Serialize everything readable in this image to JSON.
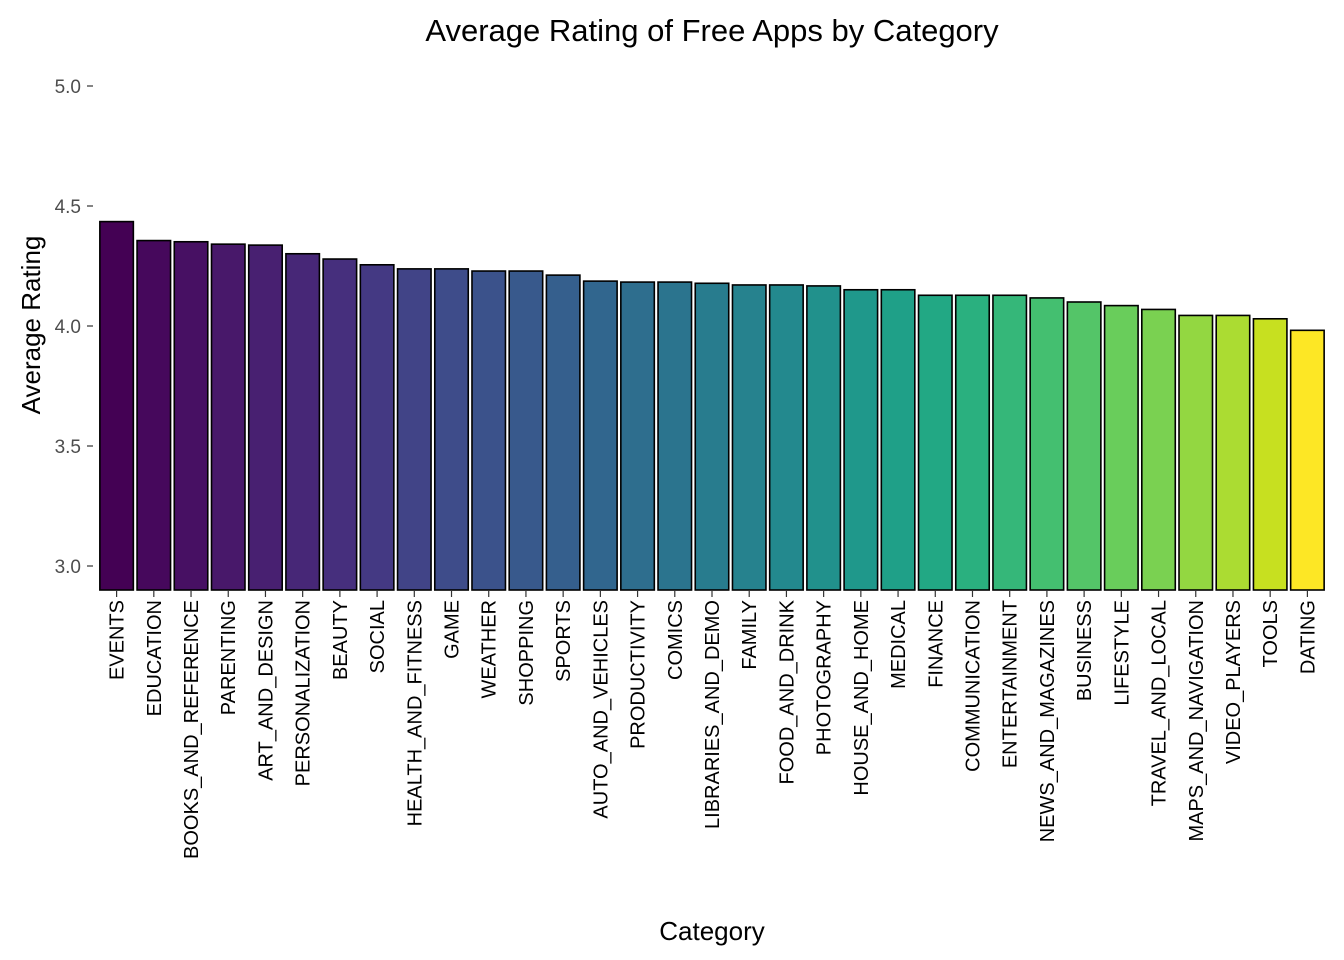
{
  "chart_data": {
    "type": "bar",
    "title": "Average Rating of Free Apps by Category",
    "xlabel": "Category",
    "ylabel": "Average Rating",
    "ylim": [
      2.89,
      5.0
    ],
    "yticks": [
      "3.0",
      "3.5",
      "4.0",
      "4.5",
      "5.0"
    ],
    "ytick_values": [
      3.0,
      3.5,
      4.0,
      4.5,
      5.0
    ],
    "grid": false,
    "legend": "none",
    "categories": [
      "EVENTS",
      "EDUCATION",
      "BOOKS_AND_REFERENCE",
      "PARENTING",
      "ART_AND_DESIGN",
      "PERSONALIZATION",
      "BEAUTY",
      "SOCIAL",
      "HEALTH_AND_FITNESS",
      "GAME",
      "WEATHER",
      "SHOPPING",
      "SPORTS",
      "AUTO_AND_VEHICLES",
      "PRODUCTIVITY",
      "COMICS",
      "LIBRARIES_AND_DEMO",
      "FAMILY",
      "FOOD_AND_DRINK",
      "PHOTOGRAPHY",
      "HOUSE_AND_HOME",
      "MEDICAL",
      "FINANCE",
      "COMMUNICATION",
      "ENTERTAINMENT",
      "NEWS_AND_MAGAZINES",
      "BUSINESS",
      "LIFESTYLE",
      "TRAVEL_AND_LOCAL",
      "MAPS_AND_NAVIGATION",
      "VIDEO_PLAYERS",
      "TOOLS",
      "DATING"
    ],
    "values": [
      4.435,
      4.356,
      4.351,
      4.341,
      4.337,
      4.301,
      4.279,
      4.255,
      4.238,
      4.238,
      4.229,
      4.229,
      4.212,
      4.187,
      4.183,
      4.183,
      4.178,
      4.171,
      4.171,
      4.167,
      4.151,
      4.151,
      4.128,
      4.128,
      4.128,
      4.117,
      4.1,
      4.085,
      4.069,
      4.044,
      4.044,
      4.03,
      3.982
    ],
    "colors": [
      "#440154",
      "#46085c",
      "#471063",
      "#48186a",
      "#482071",
      "#472777",
      "#462f7d",
      "#443983",
      "#414487",
      "#3e4c8a",
      "#3b528b",
      "#38598c",
      "#355f8d",
      "#31668e",
      "#2e6e8e",
      "#2b748e",
      "#287c8e",
      "#26828e",
      "#23898e",
      "#21918c",
      "#1f988b",
      "#1fa088",
      "#22a884",
      "#2ab07f",
      "#35b779",
      "#44bf70",
      "#54c568",
      "#69cd5b",
      "#7ad151",
      "#93d741",
      "#abdc32",
      "#c7e020",
      "#fde725"
    ]
  }
}
